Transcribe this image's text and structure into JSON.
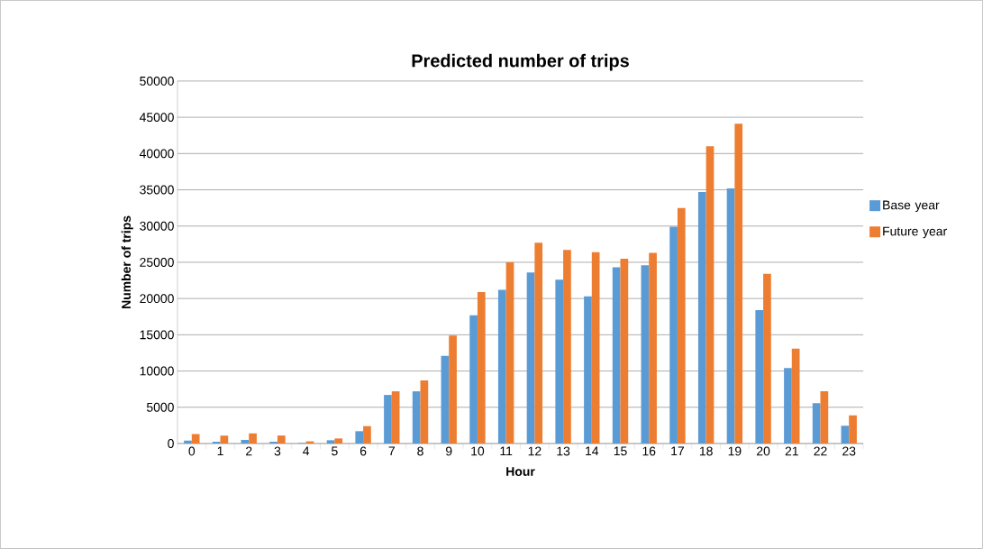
{
  "chart_data": {
    "type": "bar",
    "title": "Predicted number of trips",
    "xlabel": "Hour",
    "ylabel": "Number of trips",
    "categories": [
      "0",
      "1",
      "2",
      "3",
      "4",
      "5",
      "6",
      "7",
      "8",
      "9",
      "10",
      "11",
      "12",
      "13",
      "14",
      "15",
      "16",
      "17",
      "18",
      "19",
      "20",
      "21",
      "22",
      "23"
    ],
    "series": [
      {
        "name": "Base year",
        "color": "#5b9bd5",
        "values": [
          400,
          250,
          500,
          250,
          80,
          450,
          1700,
          6700,
          7200,
          12100,
          17700,
          21200,
          23600,
          22600,
          20300,
          24300,
          24600,
          29900,
          34700,
          35200,
          18400,
          10400,
          5550,
          2440
        ]
      },
      {
        "name": "Future year",
        "color": "#ed7d31",
        "values": [
          1300,
          1100,
          1400,
          1100,
          300,
          700,
          2400,
          7200,
          8700,
          14900,
          20900,
          25000,
          27700,
          26700,
          26400,
          25500,
          26300,
          32500,
          41000,
          44100,
          23400,
          13100,
          7200,
          3890
        ]
      }
    ],
    "ylim": [
      0,
      50000
    ],
    "yticks": [
      0,
      5000,
      10000,
      15000,
      20000,
      25000,
      30000,
      35000,
      40000,
      45000,
      50000
    ],
    "grid": "y",
    "legend": "right"
  }
}
